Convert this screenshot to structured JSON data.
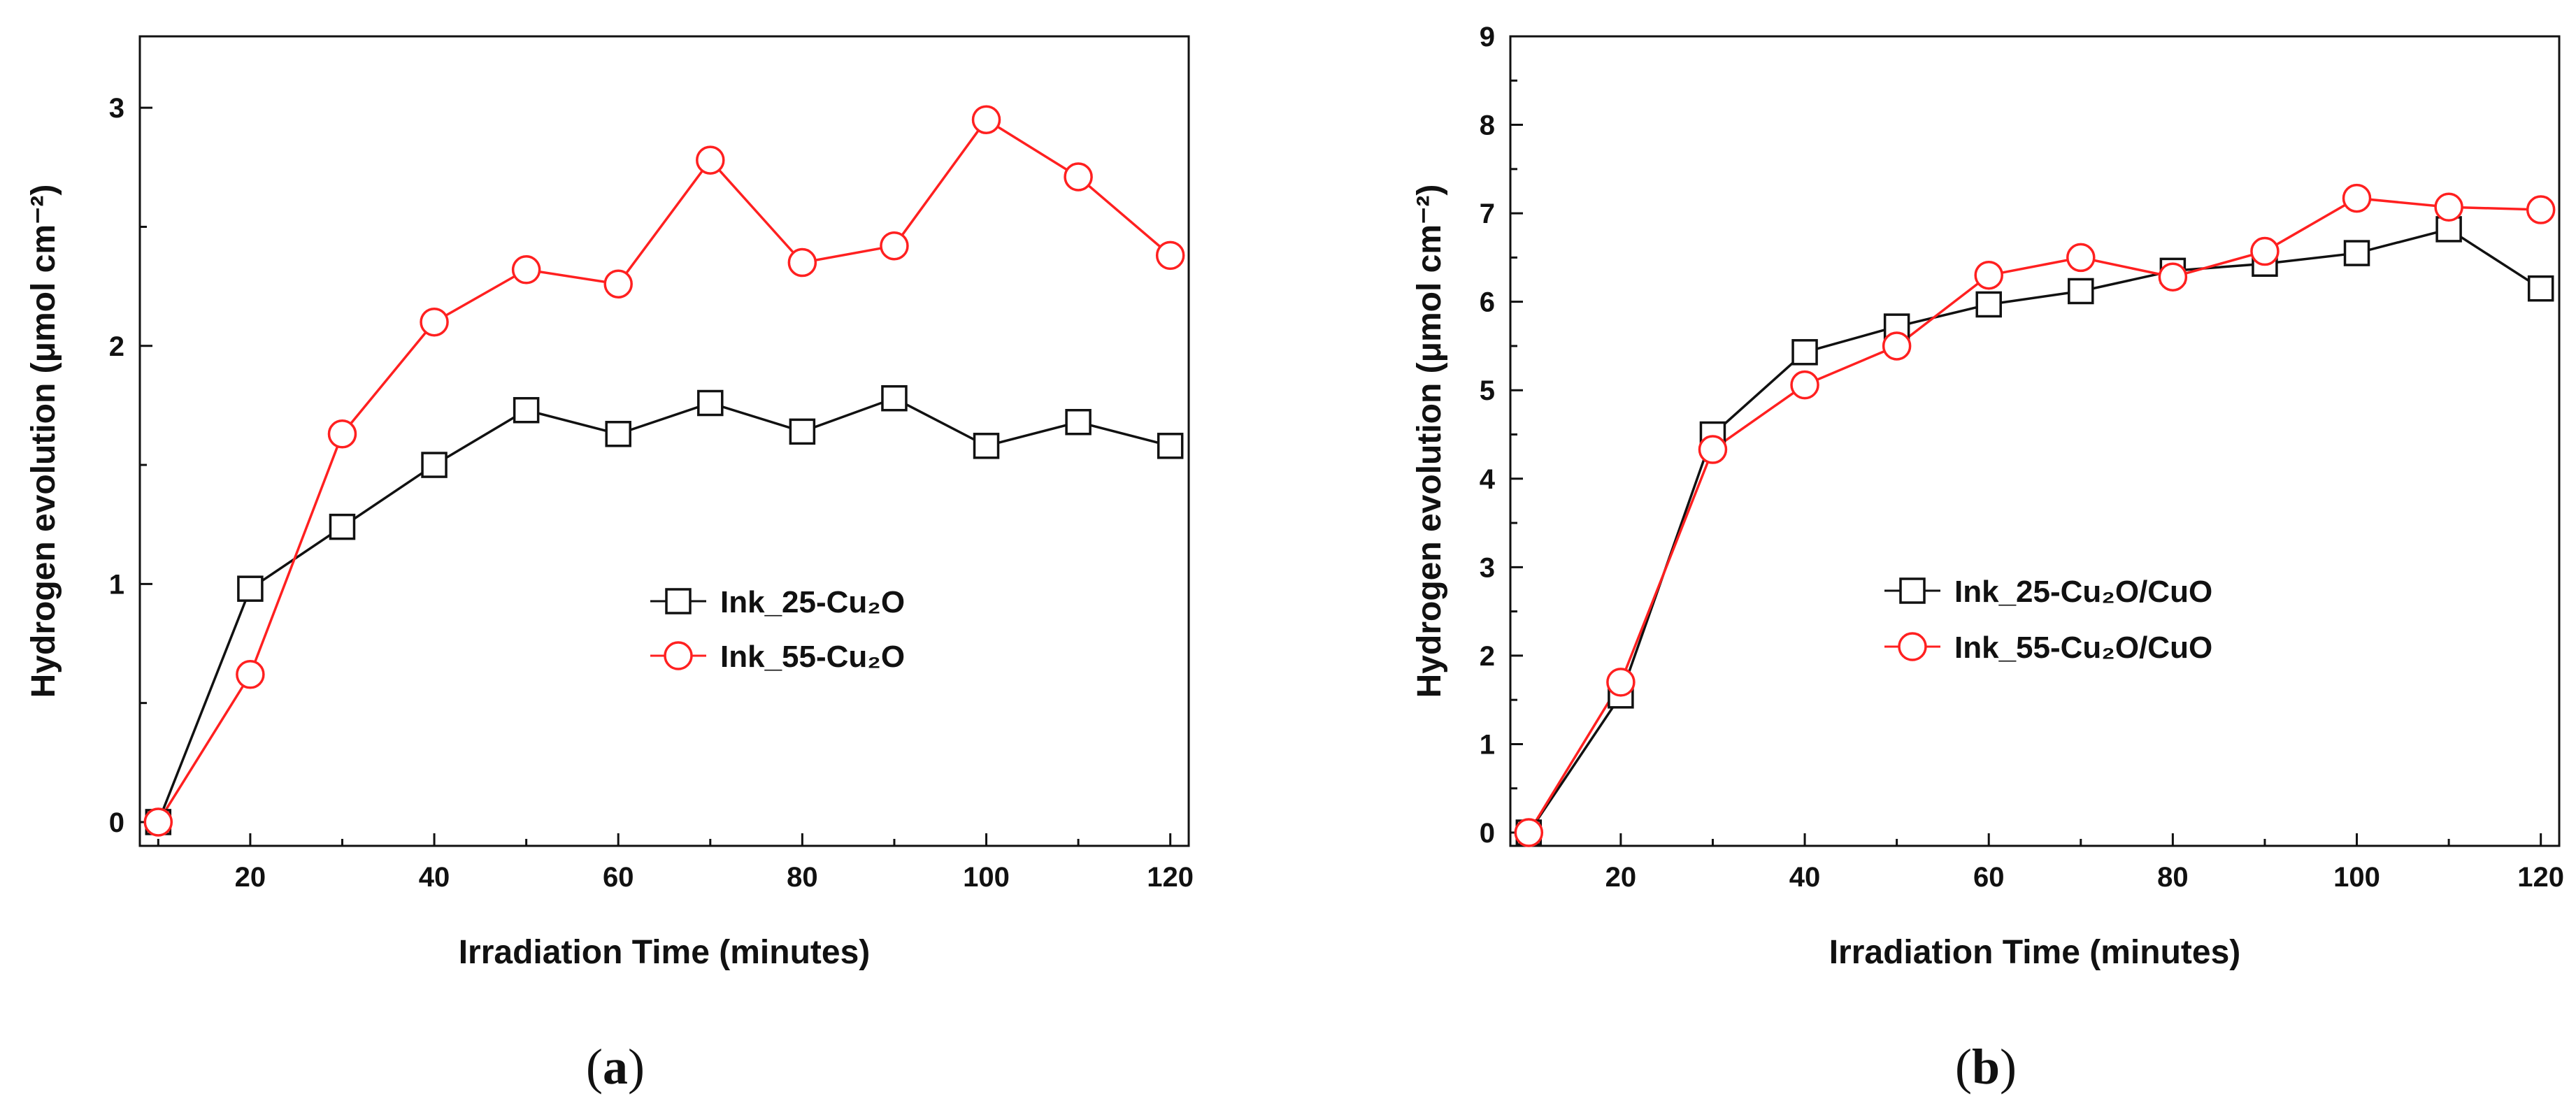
{
  "chart_data": [
    {
      "type": "line",
      "panel": "a",
      "caption_open": "(",
      "caption_letter": "a",
      "caption_close": ")",
      "title": "",
      "xlabel": "Irradiation Time (minutes)",
      "ylabel": "Hydrogen evolution (μmol cm⁻²)",
      "xlim": [
        8,
        122
      ],
      "ylim": [
        -0.1,
        3.3
      ],
      "xticks": [
        20,
        40,
        60,
        80,
        100,
        120
      ],
      "yticks": [
        0,
        1,
        2,
        3
      ],
      "x": [
        10,
        20,
        30,
        40,
        50,
        60,
        70,
        80,
        90,
        100,
        110,
        120
      ],
      "legend_position": "center-right",
      "series": [
        {
          "name": "Ink_25-Cu₂O",
          "color": "#111111",
          "marker": "square",
          "values": [
            0.0,
            0.98,
            1.24,
            1.5,
            1.73,
            1.63,
            1.76,
            1.64,
            1.78,
            1.58,
            1.68,
            1.58
          ]
        },
        {
          "name": "Ink_55-Cu₂O",
          "color": "#ff2020",
          "marker": "circle",
          "values": [
            0.0,
            0.62,
            1.63,
            2.1,
            2.32,
            2.26,
            2.78,
            2.35,
            2.42,
            2.95,
            2.71,
            2.38
          ]
        }
      ]
    },
    {
      "type": "line",
      "panel": "b",
      "caption_open": "(",
      "caption_letter": "b",
      "caption_close": ")",
      "title": "",
      "xlabel": "Irradiation Time (minutes)",
      "ylabel": "Hydrogen evolution (μmol cm⁻²)",
      "xlim": [
        8,
        122
      ],
      "ylim": [
        -0.15,
        9
      ],
      "xticks": [
        20,
        40,
        60,
        80,
        100,
        120
      ],
      "yticks": [
        0,
        1,
        2,
        3,
        4,
        5,
        6,
        7,
        8,
        9
      ],
      "x": [
        10,
        20,
        30,
        40,
        50,
        60,
        70,
        80,
        90,
        100,
        110,
        120
      ],
      "legend_position": "center",
      "series": [
        {
          "name": "Ink_25-Cu₂O/CuO",
          "color": "#111111",
          "marker": "square",
          "values": [
            0.0,
            1.55,
            4.5,
            5.43,
            5.72,
            5.97,
            6.12,
            6.35,
            6.43,
            6.55,
            6.82,
            6.15
          ]
        },
        {
          "name": "Ink_55-Cu₂O/CuO",
          "color": "#ff2020",
          "marker": "circle",
          "values": [
            0.0,
            1.7,
            4.33,
            5.06,
            5.5,
            6.3,
            6.5,
            6.28,
            6.57,
            7.17,
            7.07,
            7.04
          ]
        }
      ]
    }
  ]
}
